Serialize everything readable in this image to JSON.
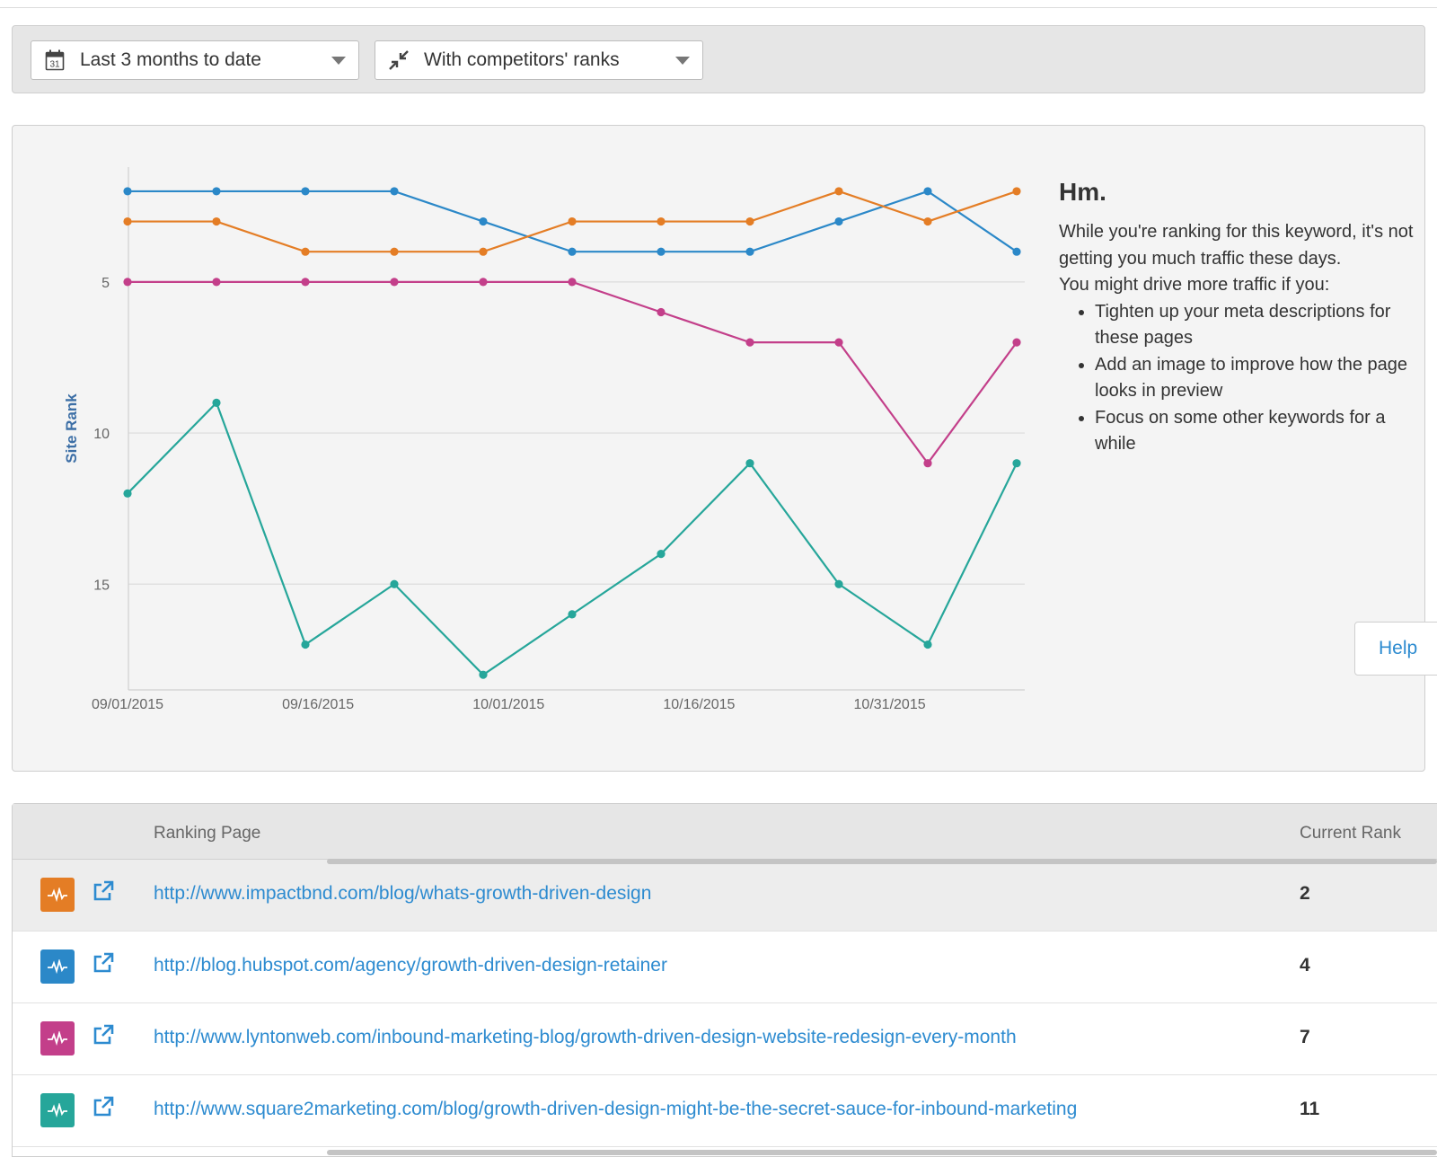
{
  "filters": {
    "date_range": {
      "label": "Last 3 months to date",
      "icon": "calendar-icon",
      "icon_text": "31"
    },
    "comparison": {
      "label": "With competitors' ranks",
      "icon": "compress-arrows-icon"
    }
  },
  "insight": {
    "title": "Hm.",
    "message": "While you're ranking for this keyword, it's not getting you much traffic these days.",
    "suggest_intro": "You might drive more traffic if you:",
    "suggestions": [
      "Tighten up your meta descriptions for these pages",
      "Add an image to improve how the page looks in preview",
      "Focus on some other keywords for a while"
    ]
  },
  "help_label": "Help",
  "chart_data": {
    "type": "line",
    "ylabel": "Site Rank",
    "y_reversed": true,
    "ylim": [
      1.2,
      18.5
    ],
    "yticks": [
      5,
      10,
      15
    ],
    "x": [
      "09/01/2015",
      "09/08/2015",
      "09/15/2015",
      "09/22/2015",
      "09/29/2015",
      "10/06/2015",
      "10/13/2015",
      "10/20/2015",
      "10/27/2015",
      "11/03/2015",
      "11/10/2015"
    ],
    "xtick_labels": [
      "09/01/2015",
      "09/16/2015",
      "10/01/2015",
      "10/16/2015",
      "10/31/2015"
    ],
    "grid": true,
    "series": [
      {
        "color": "#2b88c8",
        "values": [
          2,
          2,
          2,
          2,
          3,
          4,
          4,
          4,
          3,
          2,
          4
        ]
      },
      {
        "color": "#e47d25",
        "values": [
          3,
          3,
          4,
          4,
          4,
          3,
          3,
          3,
          2,
          3,
          2
        ]
      },
      {
        "color": "#c33f8a",
        "values": [
          5,
          5,
          5,
          5,
          5,
          5,
          6,
          7,
          7,
          11,
          7
        ]
      },
      {
        "color": "#26a69a",
        "values": [
          12,
          9,
          17,
          15,
          18,
          16,
          14,
          11,
          15,
          17,
          11
        ]
      }
    ]
  },
  "table": {
    "headers": {
      "page": "Ranking Page",
      "rank": "Current Rank"
    },
    "rows": [
      {
        "url": "http://www.impactbnd.com/blog/whats-growth-driven-design",
        "rank": "2",
        "color": "#e47d25"
      },
      {
        "url": "http://blog.hubspot.com/agency/growth-driven-design-retainer",
        "rank": "4",
        "color": "#2b88c8"
      },
      {
        "url": "http://www.lyntonweb.com/inbound-marketing-blog/growth-driven-design-website-redesign-every-month",
        "rank": "7",
        "color": "#c33f8a"
      },
      {
        "url": "http://www.square2marketing.com/blog/growth-driven-design-might-be-the-secret-sauce-for-inbound-marketing",
        "rank": "11",
        "color": "#26a69a"
      }
    ]
  }
}
